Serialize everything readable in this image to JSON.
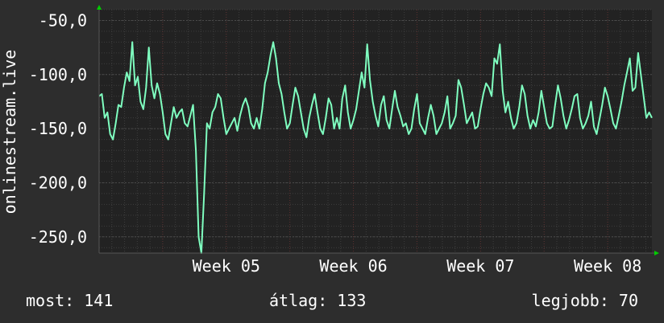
{
  "chart_data": {
    "type": "line",
    "title": "",
    "ylabel": "onlinestream.live",
    "xlabel": "",
    "ylim": [
      -265,
      -40
    ],
    "yticks": [
      -50,
      -100,
      -150,
      -200,
      -250
    ],
    "ytick_labels": [
      "-50,0",
      "-100,0",
      "-150,0",
      "-200,0",
      "-250,0"
    ],
    "xlim": [
      0,
      100
    ],
    "xticks": [
      {
        "x": 23,
        "label": "Week 05"
      },
      {
        "x": 46,
        "label": "Week 06"
      },
      {
        "x": 69,
        "label": "Week 07"
      },
      {
        "x": 92,
        "label": "Week 08"
      }
    ],
    "grid": true,
    "colors": {
      "line": "#7fffc0",
      "background": "#222222",
      "grid": "#3e3e3e",
      "vgrid": "#5a2e2e",
      "arrow": "#00cc00"
    },
    "series": [
      {
        "x": [
          0,
          0.5,
          1,
          1.5,
          2,
          2.5,
          3,
          3.5,
          4,
          4.5,
          5,
          5.5,
          6,
          6.5,
          7,
          7.5,
          8,
          8.5,
          9,
          9.5,
          10,
          10.5,
          11,
          11.5,
          12,
          12.5,
          13,
          13.5,
          14,
          14.5,
          15,
          15.5,
          16,
          16.5,
          17,
          17.5,
          18,
          18.5,
          19,
          19.5,
          20,
          20.5,
          21,
          21.5,
          22,
          22.5,
          23,
          23.5,
          24,
          24.5,
          25,
          25.5,
          26,
          26.5,
          27,
          27.5,
          28,
          28.5,
          29,
          29.5,
          30,
          30.5,
          31,
          31.5,
          32,
          32.5,
          33,
          33.5,
          34,
          34.5,
          35,
          35.5,
          36,
          36.5,
          37,
          37.5,
          38,
          38.5,
          39,
          39.5,
          40,
          40.5,
          41,
          41.5,
          42,
          42.5,
          43,
          43.5,
          44,
          44.5,
          45,
          45.5,
          46,
          46.5,
          47,
          47.5,
          48,
          48.5,
          49,
          49.5,
          50,
          50.5,
          51,
          51.5,
          52,
          52.5,
          53,
          53.5,
          54,
          54.5,
          55,
          55.5,
          56,
          56.5,
          57,
          57.5,
          58,
          58.5,
          59,
          59.5,
          60,
          60.5,
          61,
          61.5,
          62,
          62.5,
          63,
          63.5,
          64,
          64.5,
          65,
          65.5,
          66,
          66.5,
          67,
          67.5,
          68,
          68.5,
          69,
          69.5,
          70,
          70.5,
          71,
          71.5,
          72,
          72.5,
          73,
          73.5,
          74,
          74.5,
          75,
          75.5,
          76,
          76.5,
          77,
          77.5,
          78,
          78.5,
          79,
          79.5,
          80,
          80.5,
          81,
          81.5,
          82,
          82.5,
          83,
          83.5,
          84,
          84.5,
          85,
          85.5,
          86,
          86.5,
          87,
          87.5,
          88,
          88.5,
          89,
          89.5,
          90,
          90.5,
          91,
          91.5,
          92,
          92.5,
          93,
          93.5,
          94,
          94.5,
          95,
          95.5,
          96,
          96.5,
          97,
          97.5,
          98,
          98.5,
          99,
          99.5,
          100
        ],
        "values": [
          -120,
          -118,
          -140,
          -135,
          -155,
          -160,
          -145,
          -128,
          -130,
          -112,
          -98,
          -106,
          -70,
          -110,
          -102,
          -125,
          -132,
          -112,
          -75,
          -110,
          -122,
          -108,
          -118,
          -135,
          -155,
          -160,
          -145,
          -130,
          -140,
          -135,
          -132,
          -145,
          -148,
          -138,
          -128,
          -170,
          -250,
          -265,
          -210,
          -145,
          -150,
          -135,
          -130,
          -118,
          -122,
          -140,
          -155,
          -150,
          -145,
          -140,
          -152,
          -138,
          -128,
          -122,
          -130,
          -145,
          -150,
          -140,
          -150,
          -132,
          -108,
          -98,
          -82,
          -70,
          -85,
          -108,
          -118,
          -135,
          -150,
          -145,
          -128,
          -112,
          -120,
          -135,
          -150,
          -158,
          -140,
          -128,
          -118,
          -135,
          -150,
          -155,
          -140,
          -122,
          -128,
          -150,
          -140,
          -150,
          -122,
          -110,
          -135,
          -150,
          -142,
          -132,
          -115,
          -98,
          -112,
          -72,
          -105,
          -125,
          -138,
          -148,
          -128,
          -120,
          -142,
          -150,
          -132,
          -115,
          -130,
          -138,
          -148,
          -145,
          -155,
          -150,
          -132,
          -118,
          -145,
          -150,
          -155,
          -140,
          -128,
          -138,
          -155,
          -150,
          -145,
          -135,
          -120,
          -150,
          -145,
          -138,
          -105,
          -112,
          -128,
          -145,
          -140,
          -135,
          -150,
          -148,
          -132,
          -118,
          -108,
          -112,
          -120,
          -85,
          -90,
          -72,
          -115,
          -135,
          -125,
          -140,
          -150,
          -145,
          -130,
          -110,
          -118,
          -138,
          -150,
          -142,
          -148,
          -135,
          -115,
          -130,
          -145,
          -150,
          -148,
          -128,
          -110,
          -122,
          -138,
          -150,
          -142,
          -132,
          -120,
          -118,
          -140,
          -150,
          -145,
          -138,
          -125,
          -148,
          -155,
          -142,
          -128,
          -112,
          -120,
          -132,
          -145,
          -150,
          -138,
          -125,
          -110,
          -98,
          -85,
          -115,
          -112,
          -80,
          -100,
          -120,
          -140,
          -135,
          -140
        ]
      }
    ]
  },
  "stats": {
    "current": "most: 141",
    "average": "átlag: 133",
    "best": "legjobb: 70"
  }
}
